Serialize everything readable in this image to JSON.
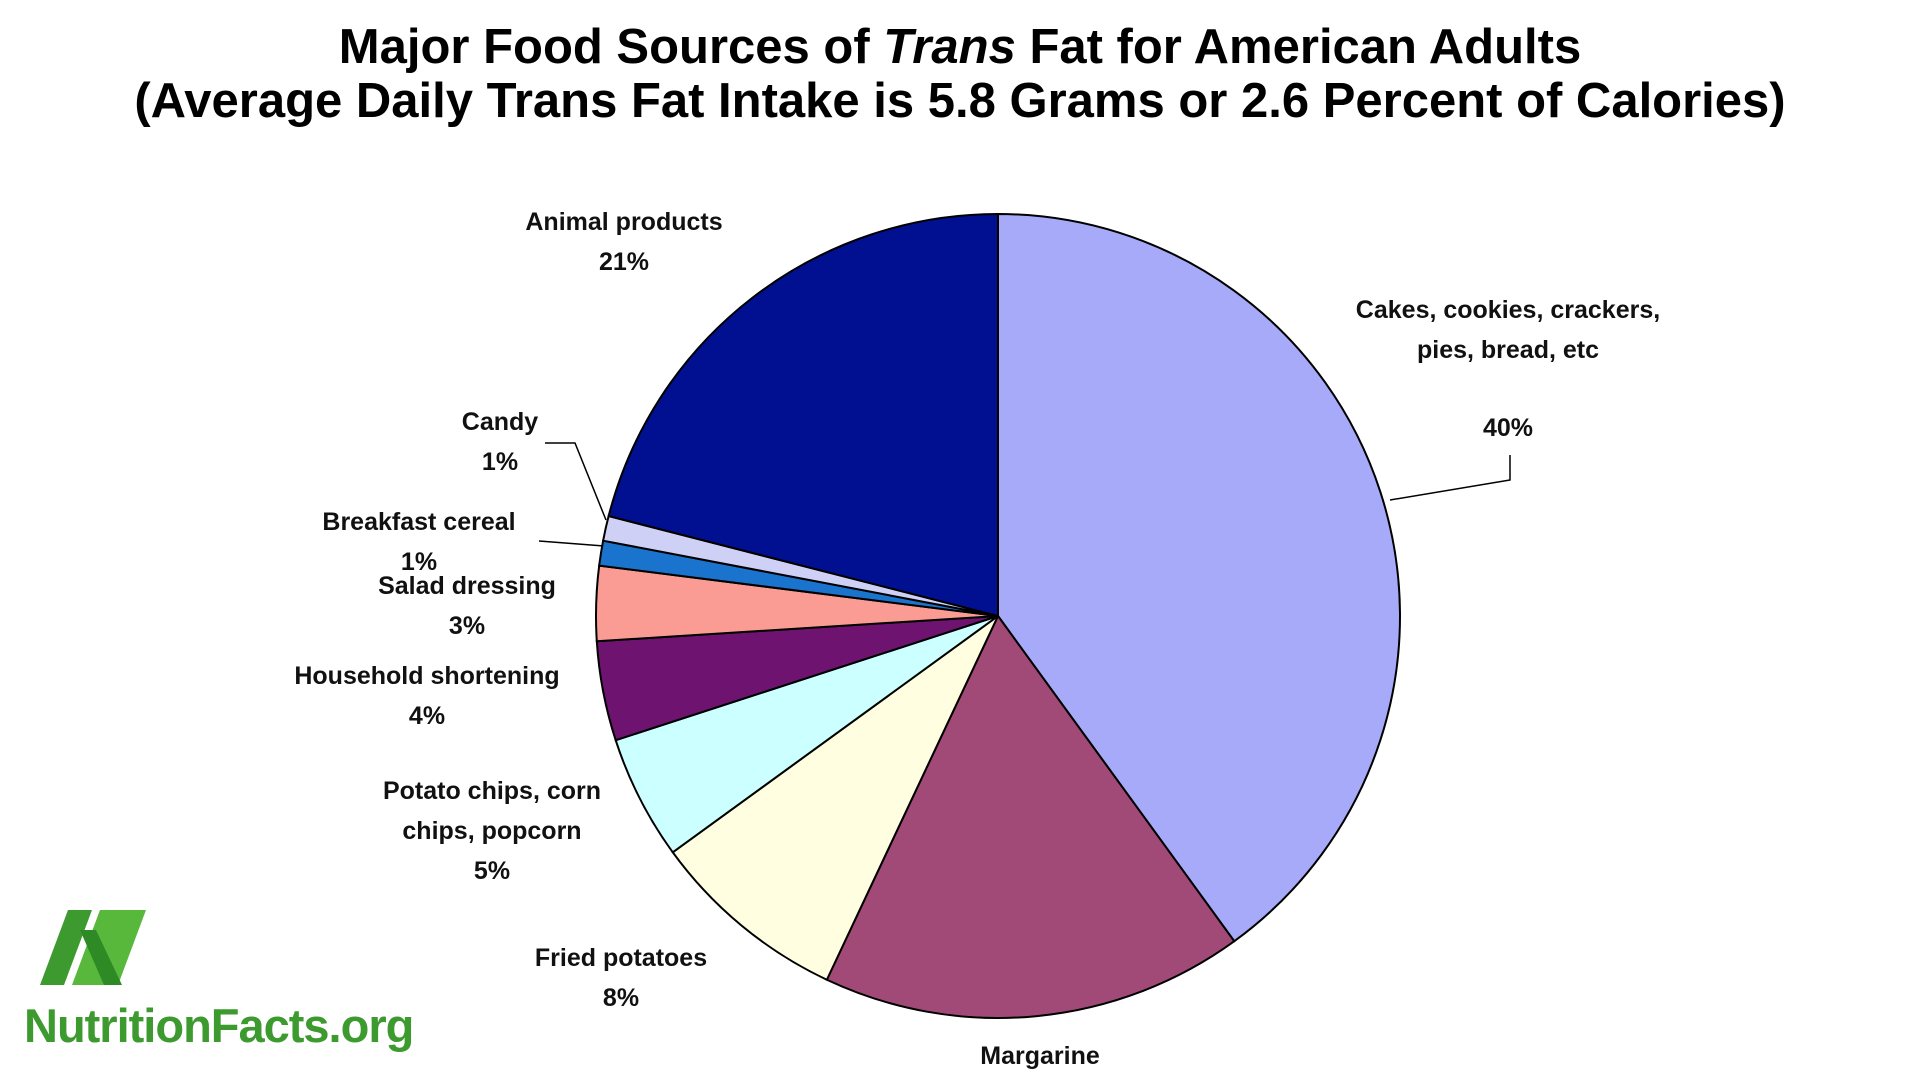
{
  "chart_data": {
    "type": "pie",
    "title": [
      "Major Food Sources of ",
      "Trans",
      " Fat for American Adults"
    ],
    "subtitle": "(Average Daily Trans Fat Intake is 5.8 Grams or 2.6 Percent of Calories)",
    "categories": [
      "Cakes, cookies, crackers, pies, bread, etc",
      "Margarine",
      "Fried potatoes",
      "Potato chips, corn chips, popcorn",
      "Household shortening",
      "Salad dressing",
      "Breakfast cereal",
      "Candy",
      "Animal products"
    ],
    "values": [
      40,
      17,
      8,
      5,
      4,
      3,
      1,
      1,
      21
    ],
    "value_labels": [
      "40%",
      null,
      "8%",
      "5%",
      "4%",
      "3%",
      "1%",
      "1%",
      "21%"
    ],
    "colors": [
      "#a6aaf8",
      "#a24a77",
      "#fffee0",
      "#ccffff",
      "#6e1470",
      "#fa9c94",
      "#1a73cc",
      "#cfd0f6",
      "#001090"
    ]
  },
  "logo": "NutritionFacts.org"
}
